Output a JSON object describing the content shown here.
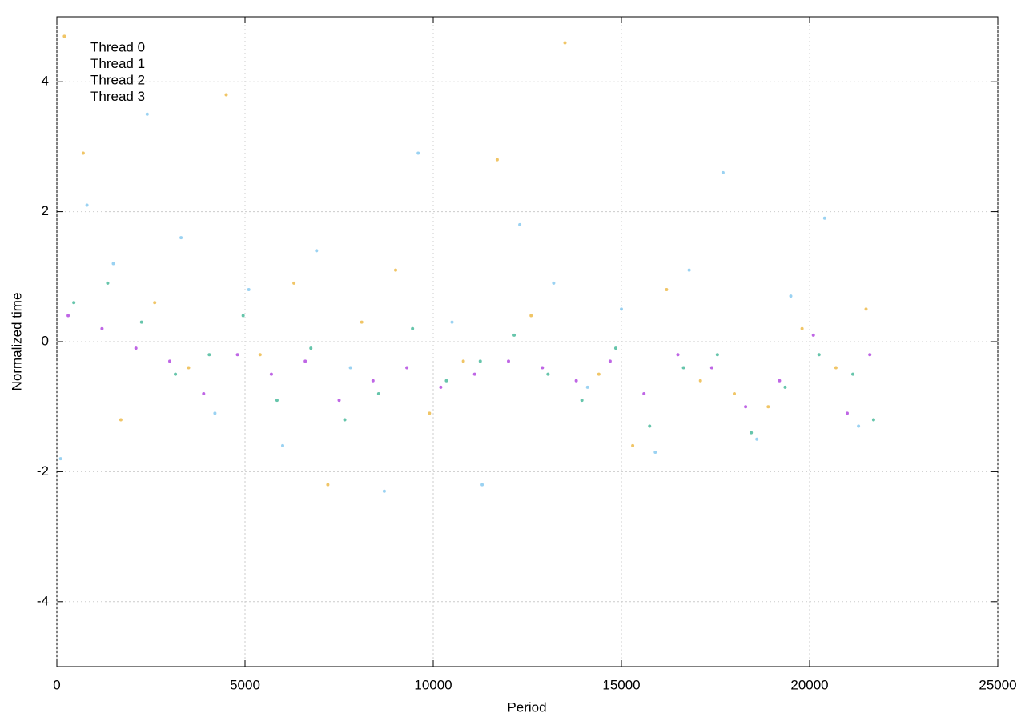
{
  "chart_data": {
    "type": "scatter",
    "xlabel": "Period",
    "ylabel": "Normalized time",
    "xlim": [
      0,
      25000
    ],
    "xticks": [
      0,
      5000,
      10000,
      15000,
      20000,
      25000
    ],
    "ylim": [
      -5,
      5
    ],
    "yticks": [
      -4,
      -2,
      0,
      2,
      4
    ],
    "grid": true,
    "legend": "upper left",
    "series": [
      {
        "name": "Thread 0",
        "color": "#9400d3",
        "x": [
          300,
          1200,
          2100,
          3000,
          3900,
          4800,
          5700,
          6600,
          7500,
          8400,
          9300,
          10200,
          11100,
          12000,
          12900,
          13800,
          14700,
          15600,
          16500,
          17400,
          18300,
          19200,
          20100,
          21000,
          21600
        ],
        "y": [
          0.4,
          0.2,
          -0.1,
          -0.3,
          -0.8,
          -0.2,
          -0.5,
          -0.3,
          -0.9,
          -0.6,
          -0.4,
          -0.7,
          -0.5,
          -0.3,
          -0.4,
          -0.6,
          -0.3,
          -0.8,
          -0.2,
          -0.4,
          -1.0,
          -0.6,
          0.1,
          -1.1,
          -0.2
        ]
      },
      {
        "name": "Thread 1",
        "color": "#009e73",
        "x": [
          450,
          1350,
          2250,
          3150,
          4050,
          4950,
          5850,
          6750,
          7650,
          8550,
          9450,
          10350,
          11250,
          12150,
          13050,
          13950,
          14850,
          15750,
          16650,
          17550,
          18450,
          19350,
          20250,
          21150,
          21700
        ],
        "y": [
          0.6,
          0.9,
          0.3,
          -0.5,
          -0.2,
          0.4,
          -0.9,
          -0.1,
          -1.2,
          -0.8,
          0.2,
          -0.6,
          -0.3,
          0.1,
          -0.5,
          -0.9,
          -0.1,
          -1.3,
          -0.4,
          -0.2,
          -1.4,
          -0.7,
          -0.2,
          -0.5,
          -1.2
        ]
      },
      {
        "name": "Thread 2",
        "color": "#56b4e9",
        "x": [
          100,
          800,
          1500,
          2400,
          3300,
          4200,
          5100,
          6000,
          6900,
          7800,
          8700,
          9600,
          10500,
          11300,
          12300,
          13200,
          14100,
          15000,
          15900,
          16800,
          17700,
          18600,
          19500,
          20400,
          21300
        ],
        "y": [
          -1.8,
          2.1,
          1.2,
          3.5,
          1.6,
          -1.1,
          0.8,
          -1.6,
          1.4,
          -0.4,
          -2.3,
          2.9,
          0.3,
          -2.2,
          1.8,
          0.9,
          -0.7,
          0.5,
          -1.7,
          1.1,
          2.6,
          -1.5,
          0.7,
          1.9,
          -1.3
        ]
      },
      {
        "name": "Thread 3",
        "color": "#e69f00",
        "x": [
          200,
          700,
          1700,
          2600,
          3500,
          4500,
          5400,
          6300,
          7200,
          8100,
          9000,
          9900,
          10800,
          11700,
          12600,
          13500,
          14400,
          15300,
          16200,
          17100,
          18000,
          18900,
          19800,
          20700,
          21500
        ],
        "y": [
          4.7,
          2.9,
          -1.2,
          0.6,
          -0.4,
          3.8,
          -0.2,
          0.9,
          -2.2,
          0.3,
          1.1,
          -1.1,
          -0.3,
          2.8,
          0.4,
          4.6,
          -0.5,
          -1.6,
          0.8,
          -0.6,
          -0.8,
          -1.0,
          0.2,
          -0.4,
          0.5
        ]
      }
    ]
  }
}
